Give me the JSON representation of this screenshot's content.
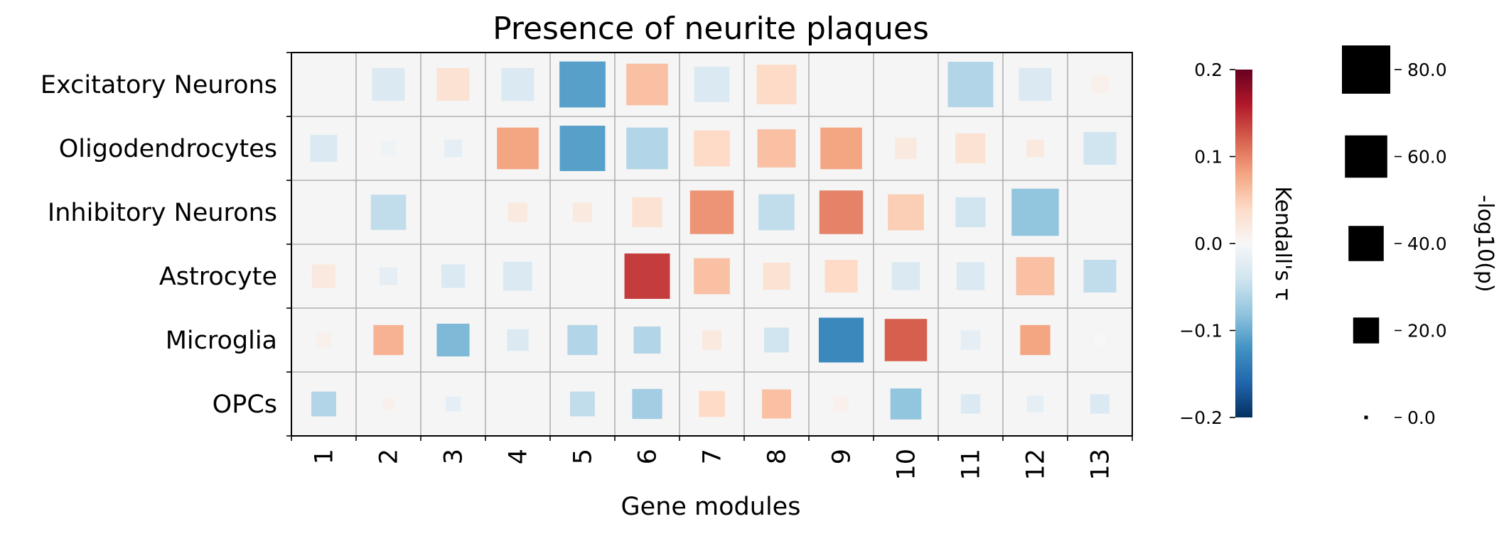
{
  "chart_data": {
    "type": "heatmap",
    "title": "Presence of neurite plaques",
    "xlabel": "Gene modules",
    "ylabel": "",
    "x_categories": [
      "1",
      "2",
      "3",
      "4",
      "5",
      "6",
      "7",
      "8",
      "9",
      "10",
      "11",
      "12",
      "13"
    ],
    "y_categories": [
      "Excitatory Neurons",
      "Oligodendrocytes",
      "Inhibitory Neurons",
      "Astrocyte",
      "Microglia",
      "OPCs"
    ],
    "encoding": "square color = Kendall's tau; square size = -log10(p)",
    "tau": [
      [
        null,
        -0.03,
        0.03,
        -0.03,
        -0.11,
        0.06,
        -0.03,
        0.04,
        null,
        null,
        -0.06,
        -0.03,
        0.01
      ],
      [
        -0.03,
        -0.01,
        -0.02,
        0.08,
        -0.11,
        -0.06,
        0.04,
        0.06,
        0.08,
        0.02,
        0.03,
        0.02,
        -0.04
      ],
      [
        null,
        -0.05,
        null,
        0.02,
        0.02,
        0.03,
        0.09,
        -0.05,
        0.1,
        0.05,
        -0.04,
        -0.08,
        null
      ],
      [
        0.02,
        -0.02,
        -0.03,
        -0.03,
        null,
        0.14,
        0.06,
        0.03,
        0.04,
        -0.03,
        -0.03,
        0.06,
        -0.05
      ],
      [
        0.01,
        0.07,
        -0.09,
        -0.03,
        -0.06,
        -0.06,
        0.02,
        -0.04,
        -0.13,
        0.12,
        -0.02,
        0.08,
        0.0
      ],
      [
        -0.06,
        0.01,
        -0.02,
        null,
        -0.05,
        -0.07,
        0.04,
        0.06,
        0.01,
        -0.08,
        -0.03,
        -0.02,
        -0.03
      ]
    ],
    "neg_log10_p": [
      [
        null,
        34,
        34,
        34,
        72,
        58,
        40,
        52,
        null,
        null,
        70,
        34,
        8
      ],
      [
        22,
        5,
        8,
        58,
        70,
        58,
        42,
        48,
        58,
        13,
        28,
        8,
        34
      ],
      [
        null,
        40,
        null,
        10,
        10,
        28,
        64,
        42,
        64,
        42,
        28,
        76,
        null
      ],
      [
        16,
        8,
        16,
        26,
        null,
        70,
        42,
        22,
        34,
        24,
        24,
        48,
        34
      ],
      [
        5,
        28,
        34,
        13,
        28,
        22,
        10,
        18,
        68,
        60,
        10,
        28,
        2
      ],
      [
        18,
        3,
        5,
        null,
        18,
        28,
        20,
        26,
        5,
        30,
        10,
        7,
        10
      ]
    ],
    "colorbar": {
      "label": "Kendall's τ",
      "vmin": -0.2,
      "vmax": 0.2,
      "ticks": [
        "0.2",
        "0.1",
        "0.0",
        "−0.1",
        "−0.2"
      ],
      "colormap": "RdBu_r"
    },
    "size_legend": {
      "label": "-log10(p)",
      "ticks": [
        "80.0",
        "60.0",
        "40.0",
        "20.0",
        "0.0"
      ],
      "values": [
        80,
        60,
        40,
        20,
        0
      ]
    },
    "grid": true,
    "legend_position": "right"
  }
}
